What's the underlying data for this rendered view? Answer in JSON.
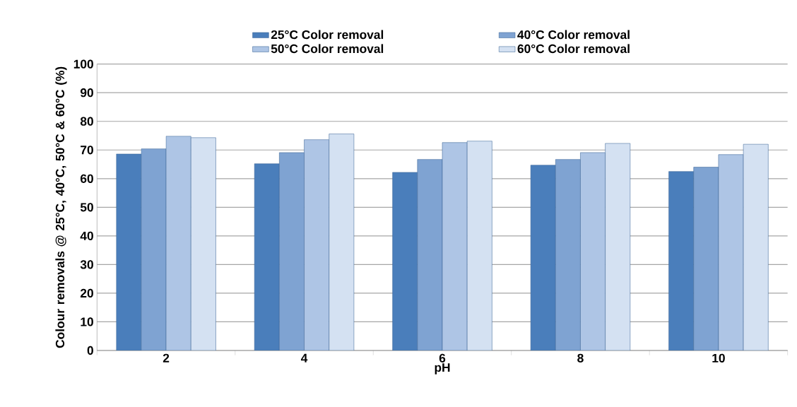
{
  "chart_data": {
    "type": "bar",
    "xlabel": "pH",
    "ylabel": "Colour removals @ 25°C, 40°C, 50°C & 60°C (%)",
    "categories": [
      "2",
      "4",
      "6",
      "8",
      "10"
    ],
    "series": [
      {
        "name": "25°C Color removal",
        "color": "#4a7ebb",
        "values": [
          68.6,
          65.2,
          62.2,
          64.7,
          62.5
        ]
      },
      {
        "name": "40°C Color removal",
        "color": "#7fa3d2",
        "values": [
          70.4,
          69.1,
          66.7,
          66.7,
          64
        ]
      },
      {
        "name": "50°C Color removal",
        "color": "#aec5e5",
        "values": [
          74.8,
          73.6,
          72.6,
          69.1,
          68.4
        ]
      },
      {
        "name": "60°C Color removal",
        "color": "#d4e1f2",
        "values": [
          74.3,
          75.6,
          73.1,
          72.3,
          72
        ]
      }
    ],
    "ylim": [
      0,
      100
    ],
    "yticks": [
      0,
      10,
      20,
      30,
      40,
      50,
      60,
      70,
      80,
      90,
      100
    ],
    "grid": "y",
    "legend": "top"
  }
}
